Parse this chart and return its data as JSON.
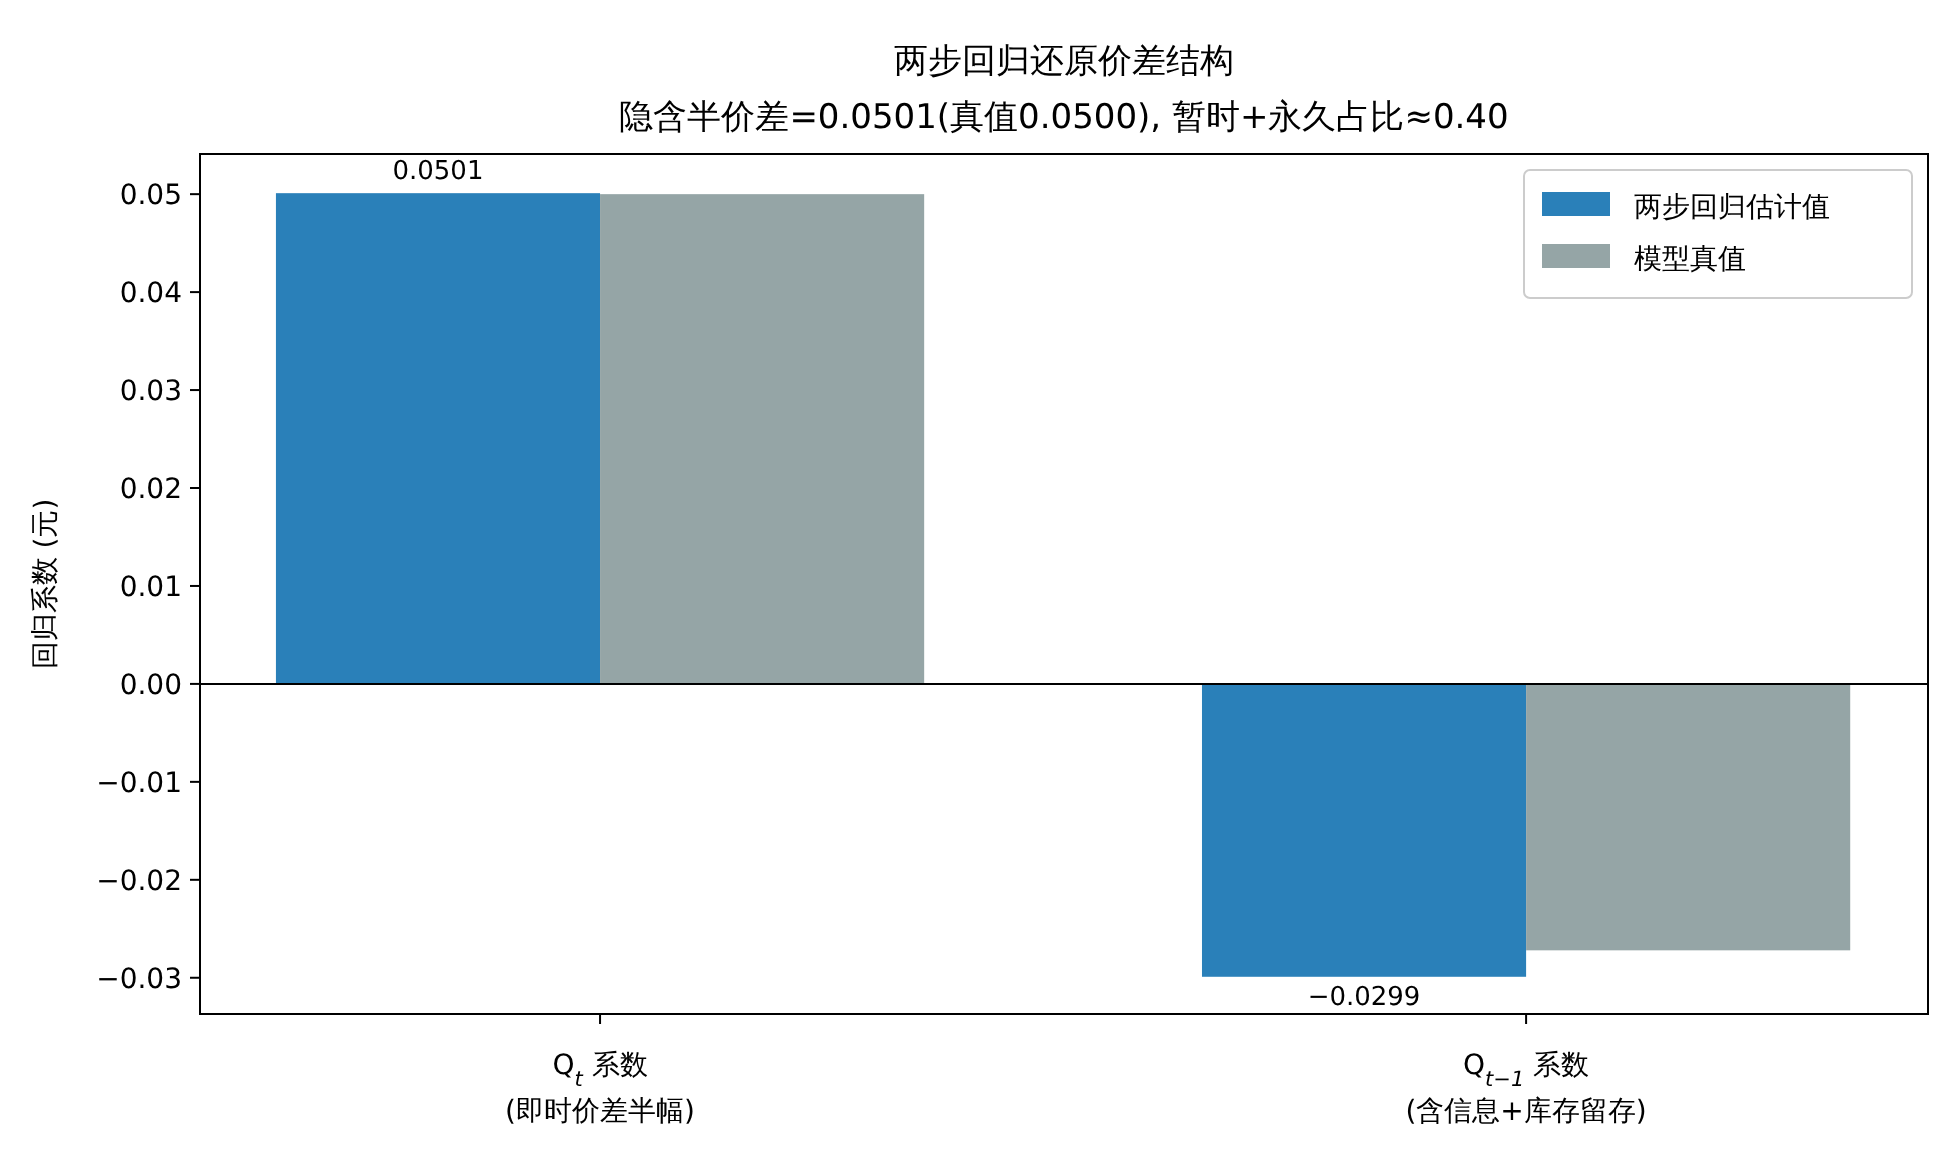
{
  "chart_data": {
    "type": "bar",
    "title": "两步回归还原价差结构",
    "subtitle": "隐含半价差=0.0501(真值0.0500), 暂时+永久占比≈0.40",
    "ylabel": "回归系数 (元)",
    "categories": [
      "Q$_{t}$ 系数\n(即时价差半幅)",
      "Q$_{t−1}$ 系数\n(含信息+库存留存)"
    ],
    "series": [
      {
        "name": "两步回归估计值",
        "color": "#2a80b9",
        "values": [
          0.0501,
          -0.0299
        ],
        "value_labels": [
          "0.0501",
          "−0.0299"
        ]
      },
      {
        "name": "模型真值",
        "color": "#95a5a6",
        "values": [
          0.05,
          -0.0272
        ]
      }
    ],
    "ylim": [
      -0.0337,
      0.0541
    ],
    "yticks": [
      {
        "value": -0.03,
        "label": "−0.03"
      },
      {
        "value": -0.02,
        "label": "−0.02"
      },
      {
        "value": -0.01,
        "label": "−0.01"
      },
      {
        "value": 0,
        "label": "0.00"
      },
      0.01,
      0.02,
      0.03,
      0.04,
      0.05
    ],
    "ref_lines": [
      {
        "axis": "y",
        "value": 0,
        "color": "#000000"
      }
    ],
    "legend": "top right",
    "grid": false
  }
}
